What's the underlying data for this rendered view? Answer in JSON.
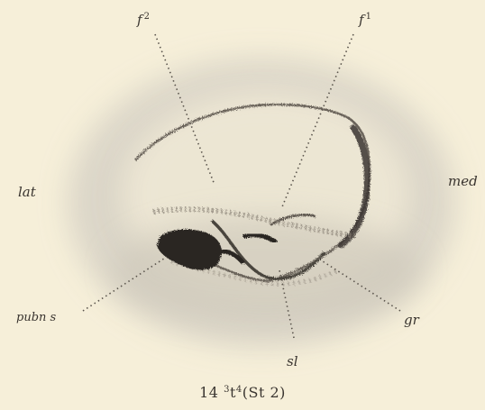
{
  "labels": {
    "f2": {
      "base": "f",
      "sup": "2"
    },
    "f1": {
      "base": "f",
      "sup": "1"
    },
    "lat": "lat",
    "med": "med",
    "pubn_s": "pubn s",
    "gr": "gr",
    "sl": "sl"
  },
  "caption": {
    "number": "14",
    "pre_sup": "3",
    "mid": "t",
    "post_sup": "4",
    "tail": "(St 2)"
  },
  "colors": {
    "background": "#f6efd9",
    "shadow": "#d8d3c6",
    "ink": "#3a3530",
    "dark_mass": "#2b2622"
  }
}
